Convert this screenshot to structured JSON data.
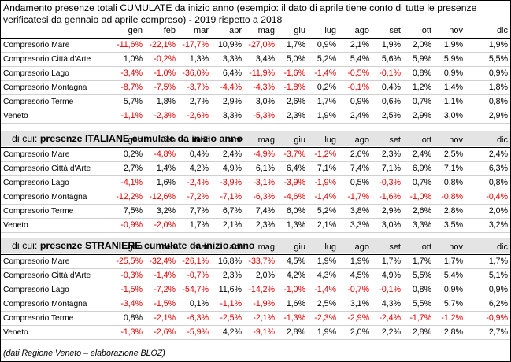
{
  "title": "Andamento presenze totali CUMULATE da inizio anno (esempio: il dato di aprile tiene conto di tutte le presenze verificatesi da gennaio ad aprile compreso) - 2019 rispetto a 2018",
  "months": [
    "gen",
    "feb",
    "mar",
    "apr",
    "mag",
    "giu",
    "lug",
    "ago",
    "set",
    "ott",
    "nov",
    "dic"
  ],
  "sections": [
    {
      "prefix": "",
      "heading": "",
      "rows": [
        {
          "label": "Compresorio Mare",
          "values": [
            "-11,6%",
            "-22,1%",
            "-17,7%",
            "10,9%",
            "-27,0%",
            "1,7%",
            "0,9%",
            "2,1%",
            "1,9%",
            "2,0%",
            "1,9%",
            "1,9%"
          ]
        },
        {
          "label": "Compresorio Città d'Arte",
          "values": [
            "1,0%",
            "-0,2%",
            "1,3%",
            "3,3%",
            "3,4%",
            "5,0%",
            "5,2%",
            "5,4%",
            "5,6%",
            "5,9%",
            "5,9%",
            "5,5%"
          ]
        },
        {
          "label": "Compresorio Lago",
          "values": [
            "-3,4%",
            "-1,0%",
            "-36,0%",
            "6,4%",
            "-11,9%",
            "-1,6%",
            "-1,4%",
            "-0,5%",
            "-0,1%",
            "0,8%",
            "0,9%",
            "0,9%"
          ]
        },
        {
          "label": "Compresorio Montagna",
          "values": [
            "-8,7%",
            "-7,5%",
            "-3,7%",
            "-4,4%",
            "-4,3%",
            "-1,8%",
            "0,2%",
            "-0,1%",
            "0,4%",
            "1,2%",
            "1,4%",
            "1,8%"
          ]
        },
        {
          "label": "Compresorio Terme",
          "values": [
            "5,7%",
            "1,8%",
            "2,7%",
            "2,9%",
            "3,0%",
            "2,6%",
            "1,7%",
            "0,9%",
            "0,6%",
            "0,7%",
            "1,1%",
            "0,8%"
          ]
        },
        {
          "label": "Veneto",
          "values": [
            "-1,1%",
            "-2,3%",
            "-2,6%",
            "3,3%",
            "-5,3%",
            "2,3%",
            "1,9%",
            "2,4%",
            "2,5%",
            "2,9%",
            "3,0%",
            "2,9%"
          ]
        }
      ]
    },
    {
      "prefix": "di cui: ",
      "heading": "presenze ITALIANE cumulate da inizio anno",
      "rows": [
        {
          "label": "Compresorio Mare",
          "values": [
            "0,2%",
            "-4,8%",
            "0,4%",
            "2,4%",
            "-4,9%",
            "-3,7%",
            "-1,2%",
            "2,6%",
            "2,3%",
            "2,4%",
            "2,5%",
            "2,4%"
          ]
        },
        {
          "label": "Compresorio Città d'Arte",
          "values": [
            "2,7%",
            "1,4%",
            "4,2%",
            "4,9%",
            "6,1%",
            "6,4%",
            "7,1%",
            "7,4%",
            "7,1%",
            "6,9%",
            "7,1%",
            "6,3%"
          ]
        },
        {
          "label": "Compresorio Lago",
          "values": [
            "-4,1%",
            "1,6%",
            "-2,4%",
            "-3,9%",
            "-3,1%",
            "-3,9%",
            "-1,9%",
            "0,5%",
            "-0,3%",
            "0,7%",
            "0,8%",
            "0,8%"
          ]
        },
        {
          "label": "Compresorio Montagna",
          "values": [
            "-12,2%",
            "-12,6%",
            "-7,2%",
            "-7,1%",
            "-6,3%",
            "-4,6%",
            "-1,4%",
            "-1,7%",
            "-1,6%",
            "-1,0%",
            "-0,8%",
            "-0,4%"
          ]
        },
        {
          "label": "Compresorio Terme",
          "values": [
            "7,5%",
            "3,2%",
            "7,7%",
            "6,7%",
            "7,4%",
            "6,0%",
            "5,2%",
            "3,8%",
            "2,9%",
            "2,6%",
            "2,8%",
            "2,0%"
          ]
        },
        {
          "label": "Veneto",
          "values": [
            "-0,9%",
            "-2,0%",
            "1,7%",
            "2,1%",
            "2,3%",
            "1,3%",
            "2,1%",
            "3,3%",
            "3,0%",
            "3,3%",
            "3,5%",
            "3,2%"
          ]
        }
      ]
    },
    {
      "prefix": "di cui: ",
      "heading": "presenze STRANIERE cumulate da inizio anno",
      "rows": [
        {
          "label": "Compresorio Mare",
          "values": [
            "-25,5%",
            "-32,4%",
            "-26,1%",
            "16,8%",
            "-33,7%",
            "4,5%",
            "1,9%",
            "1,9%",
            "1,7%",
            "1,7%",
            "1,7%",
            "1,7%"
          ]
        },
        {
          "label": "Compresorio Città d'Arte",
          "values": [
            "-0,3%",
            "-1,4%",
            "-0,7%",
            "2,3%",
            "2,0%",
            "4,2%",
            "4,3%",
            "4,5%",
            "4,9%",
            "5,5%",
            "5,4%",
            "5,1%"
          ]
        },
        {
          "label": "Compresorio Lago",
          "values": [
            "-1,5%",
            "-7,2%",
            "-54,7%",
            "11,6%",
            "-14,2%",
            "-1,0%",
            "-1,4%",
            "-0,7%",
            "-0,1%",
            "0,8%",
            "0,9%",
            "0,9%"
          ]
        },
        {
          "label": "Compresorio Montagna",
          "values": [
            "-3,4%",
            "-1,5%",
            "0,1%",
            "-1,1%",
            "-1,9%",
            "1,6%",
            "2,5%",
            "3,1%",
            "4,3%",
            "5,5%",
            "5,7%",
            "6,2%"
          ]
        },
        {
          "label": "Compresorio Terme",
          "values": [
            "0,8%",
            "-2,1%",
            "-6,3%",
            "-2,5%",
            "-2,1%",
            "-1,3%",
            "-2,3%",
            "-2,9%",
            "-2,4%",
            "-1,7%",
            "-1,2%",
            "-0,9%"
          ]
        },
        {
          "label": "Veneto",
          "values": [
            "-1,3%",
            "-2,6%",
            "-5,9%",
            "4,2%",
            "-9,1%",
            "2,8%",
            "1,9%",
            "2,0%",
            "2,2%",
            "2,8%",
            "2,8%",
            "2,7%"
          ]
        }
      ]
    }
  ],
  "footnote": "(dati Regione Veneto – elaborazione BLOZ)",
  "colors": {
    "negative": "#e00000",
    "band": "#e4e4e4"
  }
}
